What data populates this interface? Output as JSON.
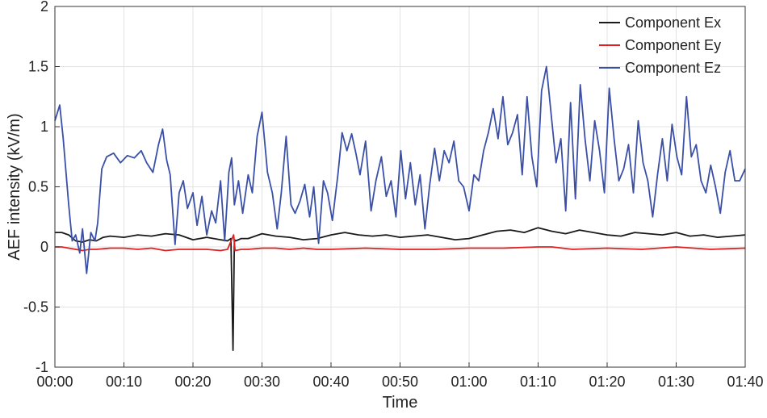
{
  "chart_data": {
    "type": "line",
    "xlabel": "Time",
    "ylabel": "AEF intensity (kV/m)",
    "x_ticks": [
      "00:00",
      "00:10",
      "00:20",
      "00:30",
      "00:40",
      "00:50",
      "01:00",
      "01:10",
      "01:20",
      "01:30",
      "01:40"
    ],
    "xlim_minutes": [
      0,
      100
    ],
    "ylim": [
      -1,
      2
    ],
    "y_ticks": [
      "2",
      "1.5",
      "1",
      "0.5",
      "0",
      "-0.5",
      "-1"
    ],
    "y_tick_values": [
      2,
      1.5,
      1,
      0.5,
      0,
      -0.5,
      -1
    ],
    "grid": true,
    "legend_position": "top-right",
    "series": [
      {
        "name": "Component Ex",
        "color": "#1a1a1a",
        "x_minutes": [
          0,
          1,
          2,
          3,
          4,
          5,
          6,
          7,
          8,
          10,
          12,
          14,
          16,
          18,
          20,
          22,
          24,
          25,
          25.5,
          25.8,
          26,
          26.2,
          27,
          28,
          30,
          32,
          34,
          36,
          38,
          40,
          42,
          44,
          46,
          48,
          50,
          52,
          54,
          56,
          58,
          60,
          62,
          64,
          66,
          68,
          70,
          72,
          74,
          76,
          78,
          80,
          82,
          84,
          86,
          88,
          90,
          92,
          94,
          96,
          98,
          100
        ],
        "y": [
          0.12,
          0.12,
          0.1,
          0.05,
          0.04,
          0.06,
          0.05,
          0.08,
          0.09,
          0.08,
          0.1,
          0.09,
          0.11,
          0.1,
          0.06,
          0.08,
          0.06,
          0.05,
          0.07,
          -0.86,
          0.06,
          0.05,
          0.07,
          0.07,
          0.11,
          0.09,
          0.08,
          0.06,
          0.07,
          0.1,
          0.12,
          0.1,
          0.09,
          0.1,
          0.08,
          0.09,
          0.1,
          0.08,
          0.06,
          0.07,
          0.1,
          0.13,
          0.14,
          0.12,
          0.16,
          0.13,
          0.11,
          0.14,
          0.12,
          0.1,
          0.09,
          0.12,
          0.11,
          0.1,
          0.12,
          0.09,
          0.1,
          0.08,
          0.09,
          0.1
        ]
      },
      {
        "name": "Component Ey",
        "color": "#e02020",
        "x_minutes": [
          0,
          1,
          2,
          3,
          4,
          5,
          6,
          8,
          10,
          12,
          14,
          16,
          18,
          20,
          22,
          24,
          25,
          25.9,
          26.1,
          27,
          28,
          30,
          32,
          34,
          36,
          38,
          40,
          45,
          50,
          55,
          60,
          65,
          70,
          72,
          75,
          80,
          85,
          90,
          95,
          100
        ],
        "y": [
          0,
          0,
          -0.01,
          -0.02,
          -0.03,
          -0.02,
          -0.02,
          -0.01,
          -0.01,
          -0.02,
          -0.01,
          -0.03,
          -0.02,
          -0.02,
          -0.02,
          -0.03,
          -0.02,
          0.1,
          -0.03,
          -0.02,
          -0.02,
          -0.01,
          -0.01,
          -0.02,
          -0.01,
          -0.02,
          -0.02,
          -0.01,
          -0.02,
          -0.02,
          -0.01,
          -0.01,
          0,
          0,
          -0.02,
          -0.01,
          -0.02,
          0,
          -0.02,
          -0.01
        ]
      },
      {
        "name": "Component Ez",
        "color": "#3a4fa8",
        "x_minutes": [
          0,
          0.7,
          1.2,
          2,
          2.5,
          3,
          3.6,
          4,
          4.6,
          5.2,
          5.8,
          6.2,
          6.8,
          7.5,
          8.5,
          9.5,
          10.5,
          11.5,
          12.5,
          13.3,
          14.2,
          15,
          15.6,
          16.2,
          16.7,
          17.4,
          18,
          18.6,
          19.2,
          20,
          20.6,
          21.3,
          22,
          22.7,
          23.3,
          24,
          24.6,
          25.2,
          25.6,
          26,
          26.6,
          27.2,
          28,
          28.6,
          29.3,
          30,
          30.8,
          31.5,
          32.2,
          32.8,
          33.5,
          34.2,
          34.8,
          35.5,
          36.2,
          36.9,
          37.5,
          38.2,
          38.9,
          39.5,
          40.2,
          41,
          41.6,
          42.3,
          43,
          43.6,
          44.2,
          45,
          45.8,
          46.5,
          47.3,
          48,
          48.7,
          49.4,
          50.1,
          50.8,
          51.5,
          52.2,
          52.9,
          53.6,
          54.3,
          55,
          55.7,
          56.4,
          57.1,
          57.8,
          58.5,
          59.2,
          60,
          60.7,
          61.4,
          62.1,
          62.8,
          63.5,
          64.2,
          64.9,
          65.6,
          66.3,
          67,
          67.7,
          68.4,
          69.1,
          69.8,
          70.5,
          71.2,
          71.9,
          72.6,
          73.3,
          74,
          74.7,
          75.4,
          76.1,
          76.8,
          77.5,
          78.2,
          78.9,
          79.6,
          80.3,
          81,
          81.7,
          82.4,
          83.1,
          83.8,
          84.5,
          85.2,
          85.9,
          86.6,
          87.3,
          88,
          88.7,
          89.4,
          90.1,
          90.8,
          91.5,
          92.2,
          92.9,
          93.6,
          94.3,
          95,
          95.7,
          96.4,
          97.1,
          97.8,
          98.5,
          99.2,
          100
        ],
        "y": [
          1.05,
          1.18,
          0.9,
          0.35,
          0.05,
          0.1,
          -0.05,
          0.15,
          -0.22,
          0.12,
          0.05,
          0.2,
          0.65,
          0.75,
          0.78,
          0.7,
          0.76,
          0.74,
          0.8,
          0.7,
          0.62,
          0.85,
          0.98,
          0.72,
          0.6,
          0.02,
          0.45,
          0.55,
          0.32,
          0.45,
          0.18,
          0.42,
          0.1,
          0.3,
          0.2,
          0.55,
          0.05,
          0.62,
          0.74,
          0.35,
          0.55,
          0.28,
          0.6,
          0.45,
          0.92,
          1.12,
          0.62,
          0.45,
          0.15,
          0.45,
          0.92,
          0.35,
          0.28,
          0.38,
          0.52,
          0.25,
          0.5,
          0.03,
          0.55,
          0.45,
          0.22,
          0.6,
          0.95,
          0.8,
          0.94,
          0.78,
          0.6,
          0.88,
          0.3,
          0.55,
          0.75,
          0.42,
          0.55,
          0.25,
          0.8,
          0.4,
          0.7,
          0.35,
          0.6,
          0.15,
          0.52,
          0.82,
          0.55,
          0.8,
          0.7,
          0.88,
          0.55,
          0.5,
          0.3,
          0.6,
          0.55,
          0.8,
          0.95,
          1.15,
          0.9,
          1.25,
          0.85,
          0.95,
          1.1,
          0.6,
          1.25,
          0.75,
          0.5,
          1.3,
          1.5,
          1.1,
          0.7,
          0.9,
          0.3,
          1.2,
          0.4,
          1.35,
          0.9,
          0.55,
          1.05,
          0.8,
          0.45,
          1.32,
          0.9,
          0.55,
          0.65,
          0.85,
          0.45,
          1.05,
          0.7,
          0.55,
          0.25,
          0.6,
          0.9,
          0.55,
          1.02,
          0.75,
          0.6,
          1.25,
          0.75,
          0.85,
          0.55,
          0.45,
          0.68,
          0.5,
          0.28,
          0.62,
          0.8,
          0.55,
          0.55,
          0.65
        ]
      }
    ]
  }
}
